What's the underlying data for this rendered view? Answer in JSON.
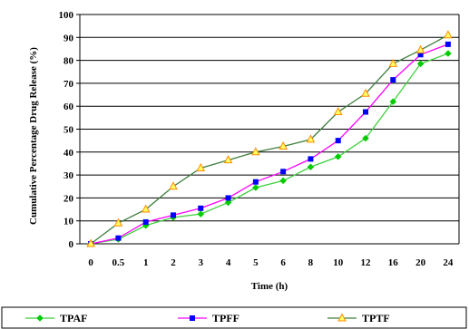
{
  "chart_data": {
    "type": "line",
    "title": "",
    "xlabel": "Time (h)",
    "ylabel": "Cumulative Percentage Drug Release (%)",
    "categories": [
      "0",
      "0.5",
      "1",
      "2",
      "3",
      "4",
      "5",
      "6",
      "8",
      "10",
      "12",
      "16",
      "20",
      "24"
    ],
    "ylim": [
      0,
      100
    ],
    "yticks": [
      "0",
      "10",
      "20",
      "30",
      "40",
      "50",
      "60",
      "70",
      "80",
      "90",
      "100"
    ],
    "grid": "horizontal",
    "legend_position": "bottom",
    "series": [
      {
        "name": "TPAF",
        "color": "#3fd13f",
        "marker": "diamond",
        "marker_color": "#00cc00",
        "values": [
          0,
          2,
          8,
          11.5,
          13,
          18,
          24.5,
          27.5,
          33.5,
          38,
          46,
          62,
          78.5,
          83
        ]
      },
      {
        "name": "TPFF",
        "color": "#ff00ff",
        "marker": "square",
        "marker_color": "#0000ff",
        "values": [
          0,
          2.5,
          9.5,
          12.5,
          15.5,
          20,
          27,
          31.5,
          37,
          45,
          57.5,
          71.5,
          82.5,
          87
        ]
      },
      {
        "name": "TPTF",
        "color": "#3f7f3f",
        "marker": "triangle",
        "marker_color": "#ff8c00",
        "values": [
          0,
          9,
          15,
          25,
          33,
          36.5,
          40,
          42.5,
          45.5,
          57.5,
          65.5,
          78.5,
          84.5,
          91
        ]
      }
    ]
  }
}
